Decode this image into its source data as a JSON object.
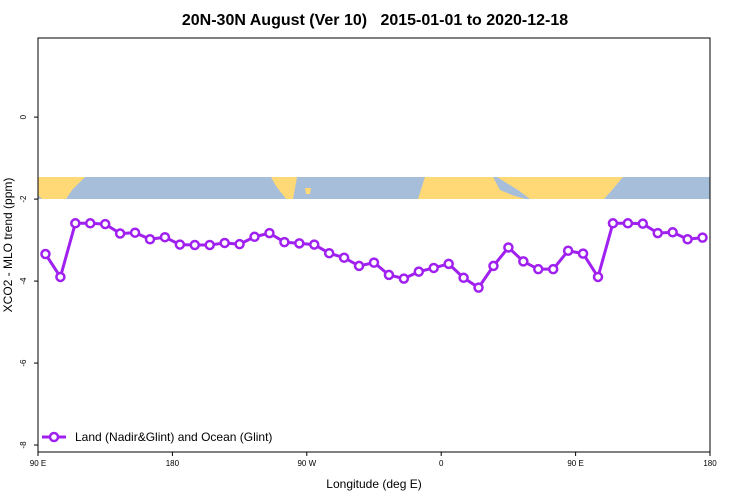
{
  "chart_data": {
    "type": "line",
    "title": "20N-30N August (Ver 10)   2015-01-01 to 2020-12-18",
    "xlabel": "Longitude (deg E)",
    "ylabel": "XCO2 - MLO trend (ppm)",
    "xlim": [
      90,
      540
    ],
    "ylim": [
      -8.17,
      1.93
    ],
    "x_tick_values": [
      90,
      180,
      270,
      360,
      450,
      540
    ],
    "x_tick_labels": [
      "90 E",
      "180",
      "90 W",
      "0",
      "90 E",
      "180"
    ],
    "y_tick_values": [
      0,
      -2,
      -4,
      -6,
      -8
    ],
    "y_tick_labels": [
      "0",
      "-2",
      "-4",
      "-6",
      "-8"
    ],
    "grid": false,
    "legend_position": "bottom-left",
    "map_strip": {
      "ocean_color": "#a7bedb",
      "land_color": "#fed976"
    },
    "series": [
      {
        "name": "Land (Nadir&Glint) and Ocean (Glint)",
        "color": "#a020f0",
        "x": [
          95,
          105,
          115,
          125,
          135,
          145,
          155,
          165,
          175,
          185,
          195,
          205,
          215,
          225,
          235,
          245,
          255,
          265,
          275,
          285,
          295,
          305,
          315,
          325,
          335,
          345,
          355,
          365,
          375,
          385,
          395,
          405,
          415,
          425,
          435,
          445,
          455,
          465,
          475,
          485,
          495,
          505,
          515,
          525,
          535
        ],
        "values": [
          -3.34,
          -3.9,
          -2.59,
          -2.59,
          -2.61,
          -2.84,
          -2.82,
          -2.98,
          -2.93,
          -3.11,
          -3.12,
          -3.12,
          -3.07,
          -3.1,
          -2.92,
          -2.83,
          -3.05,
          -3.08,
          -3.11,
          -3.32,
          -3.43,
          -3.63,
          -3.55,
          -3.85,
          -3.94,
          -3.77,
          -3.68,
          -3.58,
          -3.92,
          -4.16,
          -3.63,
          -3.18,
          -3.52,
          -3.71,
          -3.71,
          -3.26,
          -3.33,
          -3.9,
          -2.59,
          -2.59,
          -2.6,
          -2.83,
          -2.81,
          -2.98,
          -2.94
        ]
      }
    ]
  }
}
